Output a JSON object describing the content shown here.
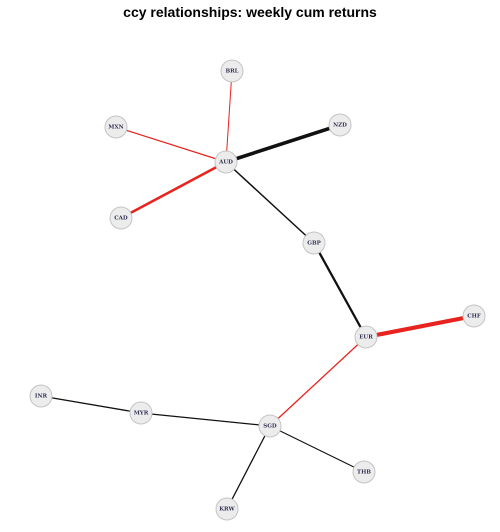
{
  "title": "ccy relationships: weekly cum returns",
  "colors": {
    "positive_edge": "#111111",
    "negative_edge": "#e8231f",
    "node_fill": "#ececec",
    "node_stroke": "#c4c4c4"
  },
  "nodes": [
    {
      "id": "BRL",
      "label": "BRL"
    },
    {
      "id": "MXN",
      "label": "MXN"
    },
    {
      "id": "NZD",
      "label": "NZD"
    },
    {
      "id": "AUD",
      "label": "AUD"
    },
    {
      "id": "CAD",
      "label": "CAD"
    },
    {
      "id": "GBP",
      "label": "GBP"
    },
    {
      "id": "CHF",
      "label": "CHF"
    },
    {
      "id": "EUR",
      "label": "EUR"
    },
    {
      "id": "INR",
      "label": "INR"
    },
    {
      "id": "MYR",
      "label": "MYR"
    },
    {
      "id": "SGD",
      "label": "SGD"
    },
    {
      "id": "THB",
      "label": "THB"
    },
    {
      "id": "KRW",
      "label": "KRW"
    }
  ],
  "edges": [
    {
      "source": "AUD",
      "target": "BRL",
      "sign": "negative",
      "strength": 1
    },
    {
      "source": "AUD",
      "target": "MXN",
      "sign": "negative",
      "strength": 1.3
    },
    {
      "source": "AUD",
      "target": "NZD",
      "sign": "positive",
      "strength": 3.6
    },
    {
      "source": "AUD",
      "target": "CAD",
      "sign": "negative",
      "strength": 2.5
    },
    {
      "source": "AUD",
      "target": "GBP",
      "sign": "positive",
      "strength": 1.5
    },
    {
      "source": "GBP",
      "target": "EUR",
      "sign": "positive",
      "strength": 2.3
    },
    {
      "source": "EUR",
      "target": "CHF",
      "sign": "negative",
      "strength": 4.2
    },
    {
      "source": "EUR",
      "target": "SGD",
      "sign": "negative",
      "strength": 1.3
    },
    {
      "source": "SGD",
      "target": "MYR",
      "sign": "positive",
      "strength": 1.3
    },
    {
      "source": "MYR",
      "target": "INR",
      "sign": "positive",
      "strength": 1.3
    },
    {
      "source": "SGD",
      "target": "THB",
      "sign": "positive",
      "strength": 1.1
    },
    {
      "source": "SGD",
      "target": "KRW",
      "sign": "positive",
      "strength": 1.3
    }
  ]
}
